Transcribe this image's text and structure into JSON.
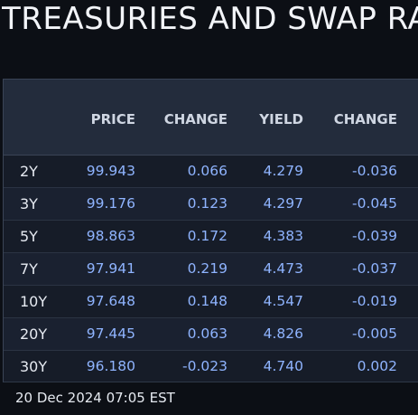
{
  "page": {
    "title": "TREASURIES AND SWAP RATES"
  },
  "table": {
    "headers": [
      "",
      "PRICE",
      "CHANGE",
      "YIELD",
      "CHANGE"
    ],
    "rows": [
      {
        "tenor": "2Y",
        "price": "99.943",
        "price_change": "0.066",
        "yield": "4.279",
        "yield_change": "-0.036"
      },
      {
        "tenor": "3Y",
        "price": "99.176",
        "price_change": "0.123",
        "yield": "4.297",
        "yield_change": "-0.045"
      },
      {
        "tenor": "5Y",
        "price": "98.863",
        "price_change": "0.172",
        "yield": "4.383",
        "yield_change": "-0.039"
      },
      {
        "tenor": "7Y",
        "price": "97.941",
        "price_change": "0.219",
        "yield": "4.473",
        "yield_change": "-0.037"
      },
      {
        "tenor": "10Y",
        "price": "97.648",
        "price_change": "0.148",
        "yield": "4.547",
        "yield_change": "-0.019"
      },
      {
        "tenor": "20Y",
        "price": "97.445",
        "price_change": "0.063",
        "yield": "4.826",
        "yield_change": "-0.005"
      },
      {
        "tenor": "30Y",
        "price": "96.180",
        "price_change": "-0.023",
        "yield": "4.740",
        "yield_change": "0.002"
      }
    ]
  },
  "footer": {
    "timestamp": "20 Dec 2024 07:05 EST"
  },
  "colors": {
    "background": "#0c0f15",
    "table_body": "#161c28",
    "header": "#232c3c",
    "value_text": "#8fb4ff",
    "label_text": "#e6eaf1"
  }
}
